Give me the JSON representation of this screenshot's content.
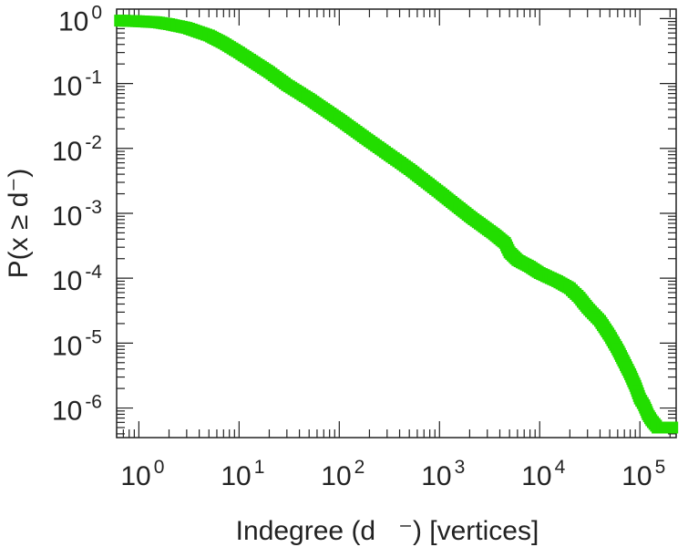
{
  "chart_data": {
    "type": "scatter",
    "title": "",
    "xlabel": "Indegree (d   ⁻) [vertices]",
    "ylabel": "P(x ≥ d⁻)",
    "xscale": "log",
    "yscale": "log",
    "xlim": [
      0.6,
      230000
    ],
    "ylim": [
      3.5e-07,
      1.4
    ],
    "xticks": [
      {
        "value": 1,
        "base": "10",
        "exp": "0"
      },
      {
        "value": 10,
        "base": "10",
        "exp": "1"
      },
      {
        "value": 100,
        "base": "10",
        "exp": "2"
      },
      {
        "value": 1000,
        "base": "10",
        "exp": "3"
      },
      {
        "value": 10000,
        "base": "10",
        "exp": "4"
      },
      {
        "value": 100000,
        "base": "10",
        "exp": "5"
      }
    ],
    "yticks": [
      {
        "value": 1,
        "base": "10",
        "exp": "0"
      },
      {
        "value": 0.1,
        "base": "10",
        "exp": "-1"
      },
      {
        "value": 0.01,
        "base": "10",
        "exp": "-2"
      },
      {
        "value": 0.001,
        "base": "10",
        "exp": "-3"
      },
      {
        "value": 0.0001,
        "base": "10",
        "exp": "-4"
      },
      {
        "value": 1e-05,
        "base": "10",
        "exp": "-5"
      },
      {
        "value": 1e-06,
        "base": "10",
        "exp": "-6"
      }
    ],
    "grid": false,
    "legend": "none",
    "marker": "square",
    "color": "#22dd00",
    "series": [
      {
        "x": [
          0.65,
          1,
          1.5,
          2,
          3,
          5,
          7,
          10,
          15,
          20,
          30,
          50,
          100,
          200,
          500,
          1000,
          2000,
          3500,
          4500,
          5000,
          6000,
          8000,
          10000,
          15000,
          20000,
          25000,
          30000,
          40000,
          50000,
          60000,
          70000,
          80000,
          90000,
          100000,
          110000,
          120000,
          130000,
          150000,
          180000,
          210000
        ],
        "y": [
          0.93,
          0.91,
          0.88,
          0.82,
          0.72,
          0.55,
          0.42,
          0.3,
          0.2,
          0.15,
          0.095,
          0.058,
          0.028,
          0.013,
          0.0048,
          0.0021,
          0.0009,
          0.00048,
          0.00035,
          0.00025,
          0.00019,
          0.00015,
          0.00012,
          9e-05,
          7e-05,
          5e-05,
          3.5e-05,
          2.2e-05,
          1.3e-05,
          8e-06,
          5e-06,
          3.3e-06,
          2.2e-06,
          1.4e-06,
          1.1e-06,
          8e-07,
          6.5e-07,
          5e-07,
          5e-07,
          5e-07
        ]
      }
    ]
  }
}
